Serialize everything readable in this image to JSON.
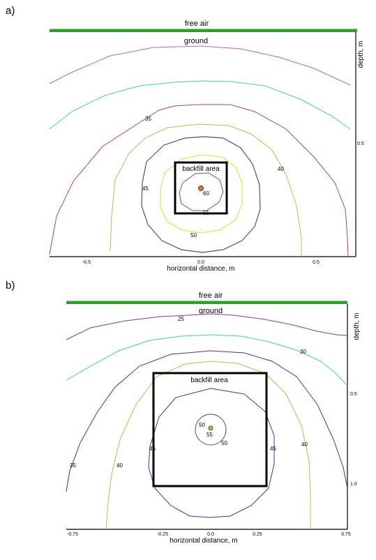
{
  "panels": [
    {
      "id": "a",
      "panel_label": "a)",
      "top_label": "free air",
      "surface_label": "ground",
      "box_label": "backfill area",
      "x_axis_label": "horizontal distance, m",
      "y_axis_label": "depth, m",
      "x_ticks": [
        "-0.5",
        "0.0",
        "0.5"
      ],
      "y_ticks": [
        "0.5"
      ],
      "contour_labels": [
        "35",
        "40",
        "45",
        "50",
        "55",
        "60"
      ],
      "colors": {
        "ground_band": "#2e9d2e",
        "contours": [
          "#c060c0",
          "#40c8d8",
          "#b84848",
          "#a0c850",
          "#555555",
          "#e8d830",
          "#8040a0"
        ],
        "source": "#c87840"
      }
    },
    {
      "id": "b",
      "panel_label": "b)",
      "top_label": "free air",
      "surface_label": "ground",
      "box_label": "backfill area",
      "x_axis_label": "horizontal distance, m",
      "y_axis_label": "depth, m",
      "x_ticks": [
        "-0.75",
        "-0.25",
        "0.0",
        "0.25",
        "0.75"
      ],
      "y_ticks": [
        "0.5",
        "1.0"
      ],
      "contour_labels": [
        "25",
        "30",
        "35",
        "40",
        "45",
        "50",
        "55"
      ],
      "colors": {
        "ground_band": "#2e9d2e",
        "contours": [
          "#8a3a8a",
          "#40c8d8",
          "#6a2a6a",
          "#a0c850",
          "#5030a0",
          "#555555"
        ],
        "source": "#c8b040"
      }
    }
  ]
}
